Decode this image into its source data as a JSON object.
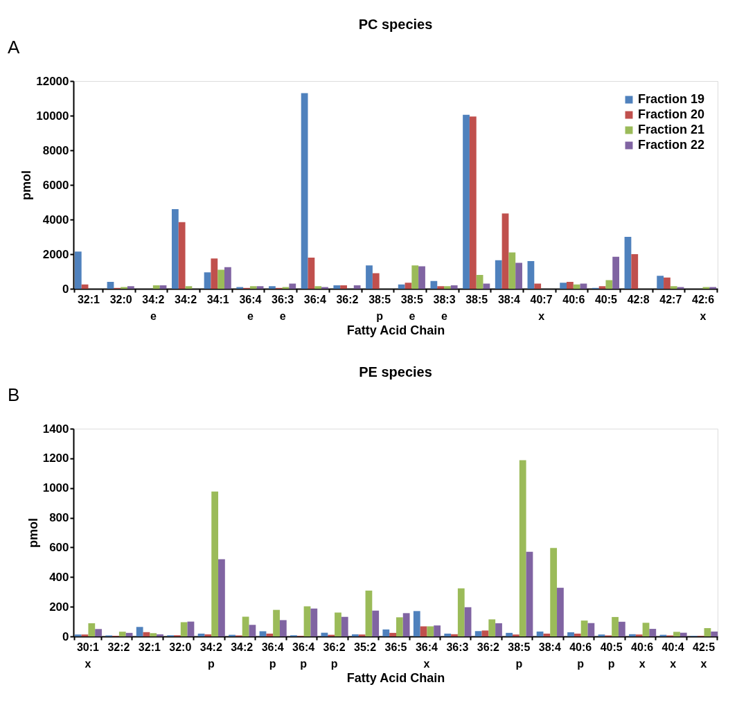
{
  "chart_data": [
    {
      "type": "bar",
      "title": "PC species",
      "xlabel": "Fatty Acid Chain",
      "ylabel": "pmol",
      "annotations": [
        "A"
      ],
      "categories": [
        "32:1",
        "32:0",
        "34:2\ne",
        "34:2",
        "34:1",
        "36:4\ne",
        "36:3\ne",
        "36:4",
        "36:2",
        "38:5\np",
        "38:5\ne",
        "38:3\ne",
        "38:5",
        "38:4",
        "40:7\nx",
        "40:6",
        "40:5",
        "42:8",
        "42:7",
        "42:6\nx"
      ],
      "series": [
        {
          "name": "Fraction 19",
          "color": "#4f81bd",
          "values": [
            2150,
            400,
            0,
            4600,
            950,
            100,
            150,
            11300,
            200,
            1350,
            250,
            450,
            10050,
            1650,
            1600,
            350,
            50,
            3000,
            750,
            0
          ]
        },
        {
          "name": "Fraction 20",
          "color": "#c0504d",
          "values": [
            250,
            50,
            0,
            3850,
            1750,
            50,
            50,
            1800,
            200,
            900,
            350,
            150,
            9950,
            4350,
            300,
            400,
            150,
            2000,
            650,
            0
          ]
        },
        {
          "name": "Fraction 21",
          "color": "#9bbb59",
          "values": [
            0,
            100,
            200,
            150,
            1100,
            150,
            100,
            150,
            0,
            0,
            1350,
            150,
            800,
            2100,
            0,
            250,
            500,
            0,
            150,
            100
          ]
        },
        {
          "name": "Fraction 22",
          "color": "#8064a2",
          "values": [
            0,
            150,
            200,
            0,
            1250,
            150,
            300,
            100,
            200,
            0,
            1300,
            200,
            300,
            1500,
            0,
            300,
            1850,
            0,
            100,
            100
          ]
        }
      ],
      "ylim": [
        0,
        12000
      ],
      "yticks": [
        0,
        2000,
        4000,
        6000,
        8000,
        10000,
        12000
      ],
      "grid": false,
      "legend": "top right"
    },
    {
      "type": "bar",
      "title": "PE species",
      "xlabel": "Fatty Acid Chain",
      "ylabel": "pmol",
      "annotations": [
        "B"
      ],
      "categories": [
        "30:1\nx",
        "32:2",
        "32:1",
        "32:0",
        "34:2\np",
        "34:2",
        "36:4\np",
        "36:4\np",
        "36:2\np",
        "35:2",
        "36:5",
        "36:4\nx",
        "36:3",
        "36:2",
        "38:5\np",
        "38:4",
        "40:6\np",
        "40:5\np",
        "40:6\nx",
        "40:4\nx",
        "42:5\nx"
      ],
      "series": [
        {
          "name": "Fraction 19",
          "color": "#4f81bd",
          "values": [
            13,
            7,
            64,
            8,
            19,
            11,
            35,
            8,
            25,
            14,
            47,
            171,
            19,
            36,
            24,
            33,
            28,
            13,
            15,
            11,
            4
          ]
        },
        {
          "name": "Fraction 20",
          "color": "#c0504d",
          "values": [
            13,
            4,
            29,
            8,
            14,
            7,
            19,
            4,
            11,
            13,
            24,
            68,
            15,
            40,
            13,
            19,
            19,
            7,
            13,
            7,
            4
          ]
        },
        {
          "name": "Fraction 21",
          "color": "#9bbb59",
          "values": [
            89,
            32,
            22,
            96,
            976,
            133,
            179,
            203,
            161,
            309,
            129,
            68,
            324,
            115,
            1188,
            596,
            107,
            131,
            92,
            31,
            56
          ]
        },
        {
          "name": "Fraction 22",
          "color": "#8064a2",
          "values": [
            50,
            24,
            14,
            100,
            520,
            78,
            110,
            188,
            132,
            174,
            157,
            74,
            197,
            89,
            570,
            328,
            90,
            99,
            51,
            25,
            33
          ]
        }
      ],
      "ylim": [
        0,
        1400
      ],
      "yticks": [
        0,
        200,
        400,
        600,
        800,
        1000,
        1200,
        1400
      ],
      "grid": false,
      "legend": "top right"
    }
  ]
}
